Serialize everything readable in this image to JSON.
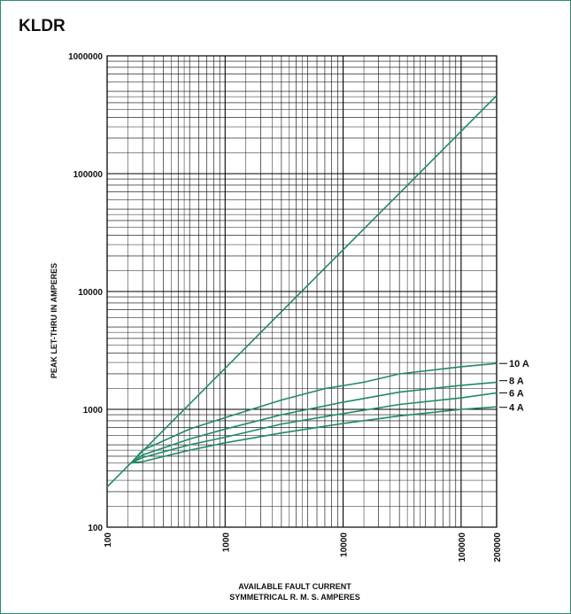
{
  "chart_data": {
    "type": "line",
    "title": "KLDR",
    "xlabel": [
      "AVAILABLE FAULT CURRENT",
      "SYMMETRICAL  R. M. S.  AMPERES"
    ],
    "ylabel": "PEAK LET-THRU IN AMPERES",
    "x_scale": "log",
    "y_scale": "log",
    "xlim": [
      100,
      200000
    ],
    "ylim": [
      100,
      1000000
    ],
    "grid": true,
    "x_ticks": [
      "100",
      "1000",
      "10000",
      "100000",
      "200000"
    ],
    "y_ticks": [
      "100",
      "1000",
      "10000",
      "100000",
      "1000000"
    ],
    "line_color": "#1f8a66",
    "series": [
      {
        "points": [
          [
            100,
            220
          ],
          [
            200000,
            460000
          ]
        ]
      },
      {
        "name": "10 A",
        "points": [
          [
            160,
            350
          ],
          [
            200,
            450
          ],
          [
            500,
            680
          ],
          [
            1000,
            850
          ],
          [
            3000,
            1200
          ],
          [
            7000,
            1500
          ],
          [
            15000,
            1700
          ],
          [
            30000,
            2000
          ],
          [
            100000,
            2300
          ],
          [
            200000,
            2450
          ]
        ]
      },
      {
        "name": "8 A",
        "points": [
          [
            160,
            350
          ],
          [
            200,
            410
          ],
          [
            500,
            560
          ],
          [
            1000,
            680
          ],
          [
            3000,
            900
          ],
          [
            10000,
            1150
          ],
          [
            30000,
            1400
          ],
          [
            100000,
            1600
          ],
          [
            200000,
            1700
          ]
        ]
      },
      {
        "name": "6 A",
        "points": [
          [
            160,
            350
          ],
          [
            200,
            390
          ],
          [
            500,
            500
          ],
          [
            1000,
            580
          ],
          [
            3000,
            750
          ],
          [
            10000,
            920
          ],
          [
            30000,
            1100
          ],
          [
            100000,
            1250
          ],
          [
            200000,
            1380
          ]
        ]
      },
      {
        "name": "4 A",
        "points": [
          [
            160,
            350
          ],
          [
            200,
            360
          ],
          [
            500,
            450
          ],
          [
            1000,
            520
          ],
          [
            3000,
            630
          ],
          [
            10000,
            760
          ],
          [
            30000,
            880
          ],
          [
            100000,
            1000
          ],
          [
            200000,
            1050
          ]
        ]
      }
    ]
  }
}
